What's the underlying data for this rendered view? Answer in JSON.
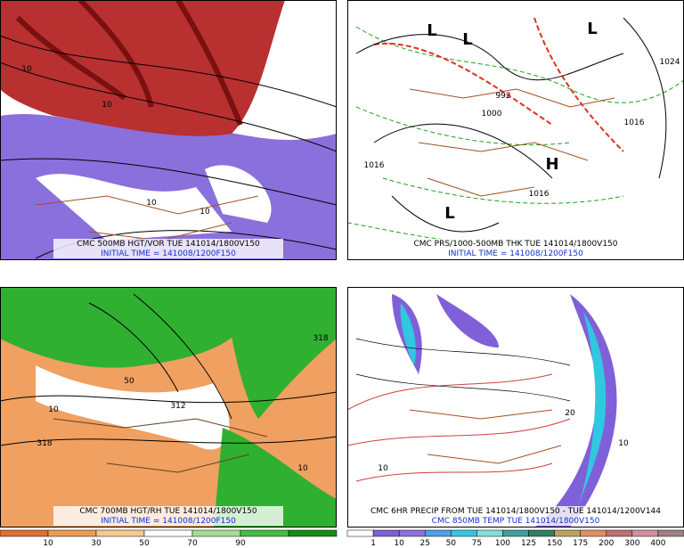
{
  "panels": [
    {
      "caption": "CMC 500MB HGT/VOR TUE 141014/1800V150",
      "initial": "INITIAL TIME = 141008/1200F150",
      "labels": [
        "10",
        "10",
        "10",
        "10"
      ]
    },
    {
      "caption": "CMC PRS/1000-500MB THK TUE 141014/1800V150",
      "initial": "INITIAL TIME = 141008/1200F150",
      "labels": [
        "L",
        "L",
        "L",
        "L",
        "H",
        "992",
        "1000",
        "1016",
        "1016",
        "1024",
        "1016"
      ]
    },
    {
      "caption": "CMC 700MB HGT/RH TUE 141014/1800V150",
      "initial": "INITIAL TIME = 141008/1200F150",
      "labels": [
        "318",
        "318",
        "312",
        "50",
        "10",
        "10"
      ]
    },
    {
      "caption": "CMC 6HR PRECIP FROM TUE 141014/1800V150 - TUE 141014/1200V144",
      "initial": "CMC 850MB TEMP TUE 141014/1800V150",
      "labels": [
        "10",
        "20",
        "10"
      ]
    }
  ],
  "colorbars": [
    {
      "labels": [
        "10",
        "30",
        "50",
        "70",
        "90"
      ],
      "colors": [
        "#e0702a",
        "#f09a50",
        "#f8c890",
        "#ffffff",
        "#a0e090",
        "#40c040",
        "#109010"
      ]
    },
    {
      "labels": [
        "1",
        "10",
        "25",
        "50",
        "75",
        "100",
        "125",
        "150",
        "175",
        "200",
        "300",
        "400"
      ],
      "colors": [
        "#ffffff",
        "#8060d8",
        "#9070e0",
        "#50a0e8",
        "#30c8e0",
        "#80e0d8",
        "#40a0a0",
        "#308060",
        "#c0a060",
        "#e09060",
        "#c07070",
        "#d090a0",
        "#a08080"
      ]
    }
  ]
}
